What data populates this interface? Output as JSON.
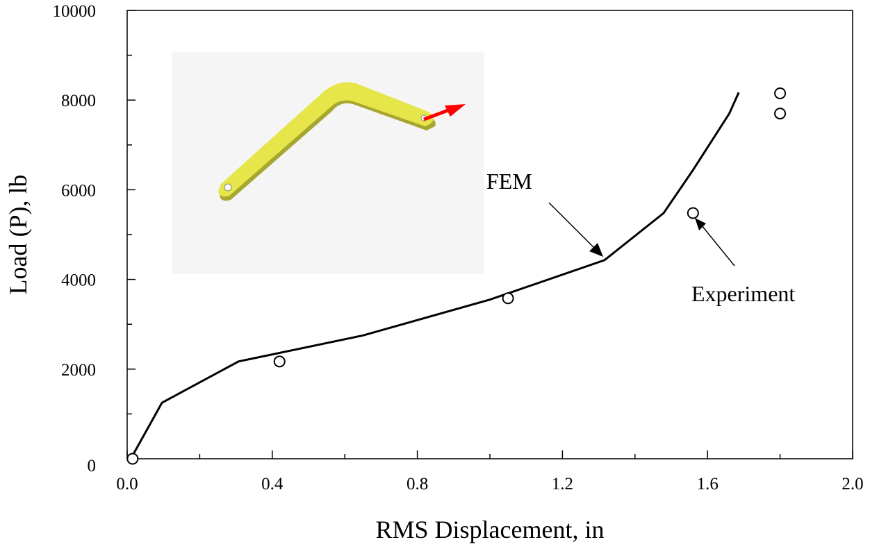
{
  "chart_data": {
    "type": "line",
    "xlabel": "RMS Displacement, in",
    "ylabel": "Load (P), lb",
    "xlim": [
      0,
      2.0
    ],
    "ylim": [
      0,
      10000
    ],
    "xticks": [
      {
        "value": 0,
        "label": "0.0"
      },
      0.4,
      0.8,
      1.2,
      1.6,
      {
        "value": 2,
        "label": "2.0"
      }
    ],
    "yticks": [
      0,
      2000,
      4000,
      6000,
      8000,
      10000
    ],
    "series": [
      {
        "name": "FEM",
        "color": "#000000",
        "style": "line",
        "x": [
          0.01,
          0.096,
          0.307,
          0.65,
          1.0,
          1.316,
          1.479,
          1.56,
          1.66,
          1.686
        ],
        "values": [
          0,
          1250,
          2170,
          2750,
          3550,
          4430,
          5480,
          6440,
          7700,
          8170
        ]
      },
      {
        "name": "Experiment",
        "color": "#000000",
        "style": "marker",
        "x": [
          0.015,
          0.42,
          1.05,
          1.56,
          1.8,
          1.8
        ],
        "values": [
          0,
          2170,
          3580,
          5480,
          7700,
          8150
        ]
      }
    ]
  }
}
